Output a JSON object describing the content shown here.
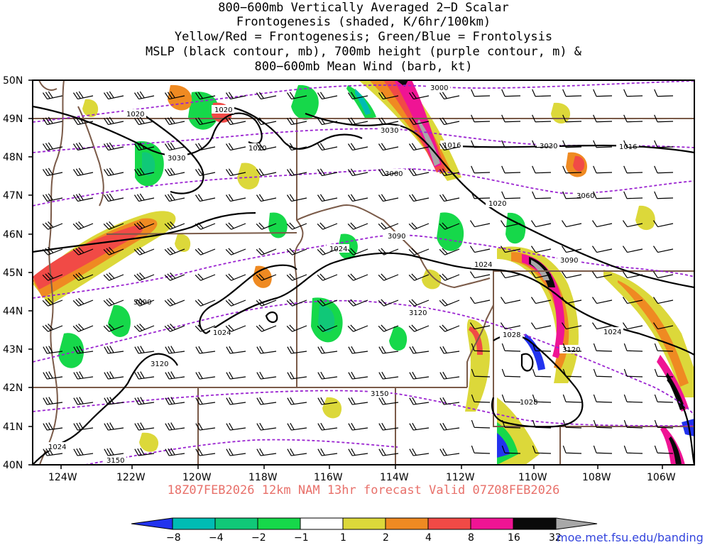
{
  "title_lines": [
    "800−600mb Vertically Averaged 2−D Scalar",
    "Frontogenesis (shaded, K/6hr/100km)",
    "Yellow/Red = Frontogenesis;  Green/Blue = Frontolysis",
    "MSLP (black contour, mb), 700mb height (purple contour, m) &",
    "800−600mb Mean Wind (barb, kt)"
  ],
  "footer": "18Z07FEB2026 12km NAM 13hr forecast Valid 07Z08FEB2026",
  "credit": "moe.met.fsu.edu/banding",
  "axes": {
    "lat_labels": [
      "50N",
      "49N",
      "48N",
      "47N",
      "46N",
      "45N",
      "44N",
      "43N",
      "42N",
      "41N",
      "40N"
    ],
    "lon_labels": [
      "124W",
      "122W",
      "120W",
      "118W",
      "116W",
      "114W",
      "112W",
      "110W",
      "108W",
      "106W"
    ]
  },
  "colorbar": {
    "labels": [
      "−8",
      "−4",
      "−2",
      "−1",
      "1",
      "2",
      "4",
      "8",
      "16",
      "32"
    ],
    "colors": [
      "#2233ee",
      "#00bcb4",
      "#10c878",
      "#16d84a",
      "#ffffff",
      "#dcd83a",
      "#ef8a22",
      "#f14a46",
      "#ef1494",
      "#0a0a0a",
      "#a8a8a8"
    ]
  },
  "mslp_labels": [
    "1020",
    "1020",
    "1020",
    "1016",
    "1016",
    "1020",
    "1024",
    "1024",
    "1028",
    "1024",
    "1024",
    "1024",
    "1028"
  ],
  "height_labels": [
    "3000",
    "3030",
    "3030",
    "3030",
    "3060",
    "3060",
    "3090",
    "3090",
    "3090",
    "3120",
    "3120",
    "3120",
    "3150",
    "3150"
  ],
  "legend_colors": {
    "mslp": "#000000",
    "height": "#9b25d1",
    "border": "#7a5a48"
  }
}
